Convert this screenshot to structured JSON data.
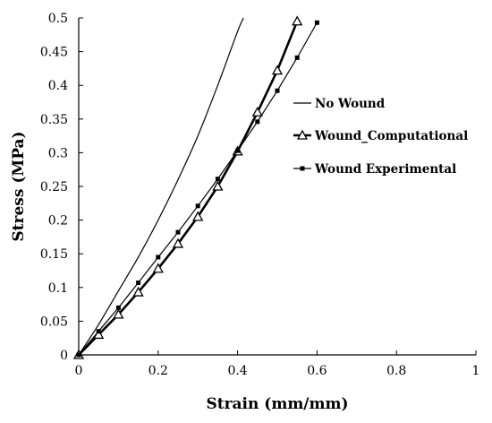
{
  "chart_data": {
    "type": "line",
    "title": "",
    "xlabel": "Strain (mm/mm)",
    "ylabel": "Stress (MPa)",
    "xlim": [
      0,
      1
    ],
    "ylim": [
      0,
      0.5
    ],
    "x_ticks": [
      0,
      0.2,
      0.4,
      0.6,
      0.8,
      1
    ],
    "x_tick_labels": [
      "0",
      "0.2",
      "0.4",
      "0.6",
      "0.8",
      "1"
    ],
    "y_ticks": [
      0,
      0.05,
      0.1,
      0.15,
      0.2,
      0.25,
      0.3,
      0.35,
      0.4,
      0.45,
      0.5
    ],
    "y_tick_labels": [
      "0",
      "0.05",
      "0.1",
      "0.15",
      "0.2",
      "0.25",
      "0.3",
      "0.35",
      "0.4",
      "0.45",
      "0.5"
    ],
    "grid": false,
    "legend_position": "upper-middle",
    "series": [
      {
        "name": "No Wound",
        "marker": "none",
        "line_width": "thin",
        "color": "#000000",
        "x": [
          0,
          0.05,
          0.1,
          0.15,
          0.2,
          0.25,
          0.3,
          0.35,
          0.4,
          0.415
        ],
        "y": [
          0,
          0.045,
          0.095,
          0.145,
          0.2,
          0.26,
          0.325,
          0.4,
          0.48,
          0.5
        ]
      },
      {
        "name": "Wound_Computational",
        "marker": "triangle",
        "line_width": "thick",
        "color": "#000000",
        "x": [
          0,
          0.05,
          0.1,
          0.15,
          0.2,
          0.25,
          0.3,
          0.35,
          0.4,
          0.45,
          0.5,
          0.55
        ],
        "y": [
          0,
          0.03,
          0.06,
          0.093,
          0.128,
          0.165,
          0.205,
          0.25,
          0.302,
          0.36,
          0.422,
          0.495
        ]
      },
      {
        "name": "Wound  Experimental",
        "marker": "square",
        "line_width": "thin",
        "color": "#000000",
        "x": [
          0,
          0.05,
          0.1,
          0.15,
          0.2,
          0.25,
          0.3,
          0.35,
          0.4,
          0.45,
          0.5,
          0.55,
          0.6
        ],
        "y": [
          0,
          0.035,
          0.07,
          0.107,
          0.145,
          0.182,
          0.221,
          0.261,
          0.303,
          0.346,
          0.392,
          0.441,
          0.493
        ]
      }
    ]
  }
}
